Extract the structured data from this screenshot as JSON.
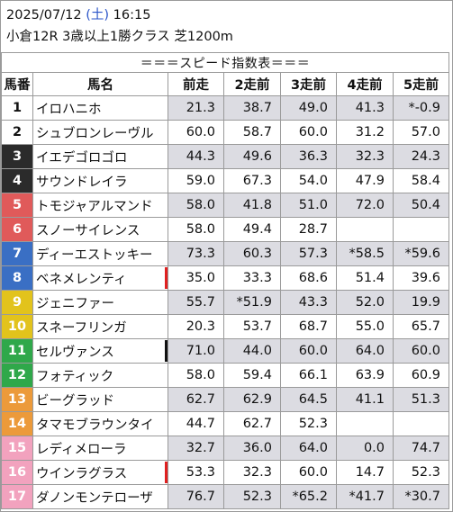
{
  "header": {
    "date": "2025/07/12",
    "day_open": "(",
    "day": "土",
    "day_close": ")",
    "time": "16:15",
    "race": "小倉12R 3歳以上1勝クラス 芝1200m"
  },
  "table": {
    "title": "＝＝＝スピード指数表＝＝＝",
    "columns": [
      "馬番",
      "馬名",
      "前走",
      "2走前",
      "3走前",
      "4走前",
      "5走前"
    ],
    "rows": [
      {
        "num": "1",
        "bg": "#ffffff",
        "fg": "#111111",
        "name": "イロハニホ",
        "mark": "",
        "v": [
          "21.3",
          "38.7",
          "49.0",
          "41.3",
          "*-0.9"
        ],
        "g": [
          1,
          1,
          1,
          1,
          1
        ]
      },
      {
        "num": "2",
        "bg": "#ffffff",
        "fg": "#111111",
        "name": "シュブロンレーヴル",
        "mark": "",
        "v": [
          "60.0",
          "58.7",
          "60.0",
          "31.2",
          "57.0"
        ],
        "g": [
          0,
          0,
          0,
          0,
          0
        ]
      },
      {
        "num": "3",
        "bg": "#2b2b2b",
        "fg": "#ffffff",
        "name": "イエデゴロゴロ",
        "mark": "",
        "v": [
          "44.3",
          "49.6",
          "36.3",
          "32.3",
          "24.3"
        ],
        "g": [
          1,
          1,
          1,
          1,
          1
        ]
      },
      {
        "num": "4",
        "bg": "#2b2b2b",
        "fg": "#ffffff",
        "name": "サウンドレイラ",
        "mark": "",
        "v": [
          "59.0",
          "67.3",
          "54.0",
          "47.9",
          "58.4"
        ],
        "g": [
          0,
          0,
          0,
          0,
          0
        ]
      },
      {
        "num": "5",
        "bg": "#e05a5a",
        "fg": "#ffffff",
        "name": "トモジャアルマンド",
        "mark": "",
        "v": [
          "58.0",
          "41.8",
          "51.0",
          "72.0",
          "50.4"
        ],
        "g": [
          1,
          1,
          1,
          1,
          1
        ]
      },
      {
        "num": "6",
        "bg": "#e05a5a",
        "fg": "#ffffff",
        "name": "スノーサイレンス",
        "mark": "",
        "v": [
          "58.0",
          "49.4",
          "28.7",
          "",
          ""
        ],
        "g": [
          0,
          0,
          0,
          0,
          0
        ]
      },
      {
        "num": "7",
        "bg": "#3a6fc4",
        "fg": "#ffffff",
        "name": "ディーエストッキー",
        "mark": "",
        "v": [
          "73.3",
          "60.3",
          "57.3",
          "*58.5",
          "*59.6"
        ],
        "g": [
          1,
          1,
          1,
          1,
          1
        ]
      },
      {
        "num": "8",
        "bg": "#3a6fc4",
        "fg": "#ffffff",
        "name": "ベネメレンティ",
        "mark": "#e02020",
        "v": [
          "35.0",
          "33.3",
          "68.6",
          "51.4",
          "39.6"
        ],
        "g": [
          0,
          0,
          0,
          0,
          0
        ]
      },
      {
        "num": "9",
        "bg": "#e2c31c",
        "fg": "#ffffff",
        "name": "ジェニファー",
        "mark": "",
        "v": [
          "55.7",
          "*51.9",
          "43.3",
          "52.0",
          "19.9"
        ],
        "g": [
          1,
          1,
          1,
          1,
          1
        ]
      },
      {
        "num": "10",
        "bg": "#e2c31c",
        "fg": "#ffffff",
        "name": "スネーフリンガ",
        "mark": "",
        "v": [
          "20.3",
          "53.7",
          "68.7",
          "55.0",
          "65.7"
        ],
        "g": [
          0,
          0,
          0,
          0,
          0
        ]
      },
      {
        "num": "11",
        "bg": "#2fa84a",
        "fg": "#ffffff",
        "name": "セルヴァンス",
        "mark": "#111111",
        "v": [
          "71.0",
          "44.0",
          "60.0",
          "64.0",
          "60.0"
        ],
        "g": [
          1,
          1,
          1,
          1,
          1
        ]
      },
      {
        "num": "12",
        "bg": "#2fa84a",
        "fg": "#ffffff",
        "name": "フォティック",
        "mark": "",
        "v": [
          "58.0",
          "59.4",
          "66.1",
          "63.9",
          "60.9"
        ],
        "g": [
          0,
          0,
          0,
          0,
          0
        ]
      },
      {
        "num": "13",
        "bg": "#ec9a3a",
        "fg": "#ffffff",
        "name": "ビーグラッド",
        "mark": "",
        "v": [
          "62.7",
          "62.9",
          "64.5",
          "41.1",
          "51.3"
        ],
        "g": [
          1,
          1,
          1,
          1,
          1
        ]
      },
      {
        "num": "14",
        "bg": "#ec9a3a",
        "fg": "#ffffff",
        "name": "タマモブラウンタイ",
        "mark": "",
        "v": [
          "44.7",
          "62.7",
          "52.3",
          "",
          ""
        ],
        "g": [
          0,
          0,
          0,
          0,
          0
        ]
      },
      {
        "num": "15",
        "bg": "#f2a2be",
        "fg": "#ffffff",
        "name": "レディメローラ",
        "mark": "",
        "v": [
          "32.7",
          "36.0",
          "64.0",
          "0.0",
          "74.7"
        ],
        "g": [
          1,
          1,
          1,
          1,
          1
        ]
      },
      {
        "num": "16",
        "bg": "#f2a2be",
        "fg": "#ffffff",
        "name": "ウインラグラス",
        "mark": "#e02020",
        "v": [
          "53.3",
          "32.3",
          "60.0",
          "14.7",
          "52.3"
        ],
        "g": [
          0,
          0,
          0,
          0,
          0
        ]
      },
      {
        "num": "17",
        "bg": "#f2a2be",
        "fg": "#ffffff",
        "name": "ダノンモンテローザ",
        "mark": "",
        "v": [
          "76.7",
          "52.3",
          "*65.2",
          "*41.7",
          "*30.7"
        ],
        "g": [
          1,
          1,
          1,
          1,
          1
        ]
      }
    ]
  }
}
